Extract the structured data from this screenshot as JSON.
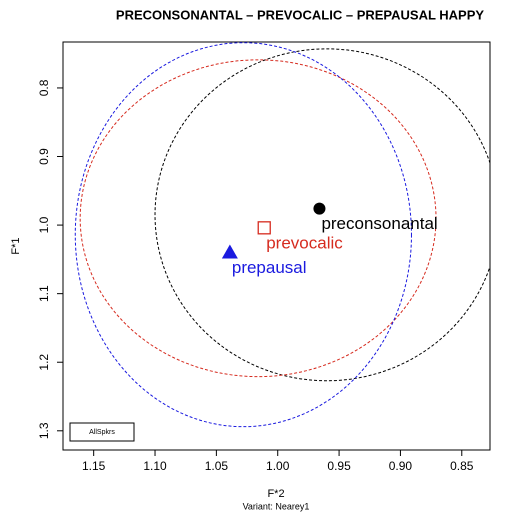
{
  "chart_data": {
    "type": "scatter",
    "title": "PRECONSONANTAL – PREVOCALIC – PREPAUSAL HAPPY",
    "x_label": "F*2",
    "y_label": "F*1",
    "note": "Variant: Nearey1",
    "legend_label": "AllSpkrs",
    "xlim": [
      1.175,
      0.827
    ],
    "ylim": [
      0.733,
      1.328
    ],
    "xticks": [
      1.15,
      {
        "value": 1.1,
        "label": "1.10"
      },
      1.05,
      {
        "value": 1.0,
        "label": "1.00"
      },
      0.95,
      {
        "value": 0.9,
        "label": "0.90"
      },
      0.85
    ],
    "yticks": [
      0.8,
      0.9,
      {
        "value": 1.0,
        "label": "1.0"
      },
      1.1,
      1.2,
      1.3
    ],
    "series": [
      {
        "name": "preconsonantal",
        "color": "#000000",
        "marker": "circle",
        "x": [
          0.966
        ],
        "values": [
          0.976
        ],
        "ellipse": {
          "cx": 0.96,
          "cy": 0.985,
          "rx": 0.14,
          "ry": 0.242
        }
      },
      {
        "name": "prevocalic",
        "color": "#d62b1f",
        "marker": "square",
        "x": [
          1.011
        ],
        "values": [
          1.004
        ],
        "ellipse": {
          "cx": 1.016,
          "cy": 0.99,
          "rx": 0.145,
          "ry": 0.231
        }
      },
      {
        "name": "prepausal",
        "color": "#1a1adf",
        "marker": "triangle",
        "x": [
          1.039
        ],
        "values": [
          1.04
        ],
        "ellipse": {
          "cx": 1.028,
          "cy": 1.014,
          "rx": 0.137,
          "ry": 0.28
        }
      }
    ]
  }
}
